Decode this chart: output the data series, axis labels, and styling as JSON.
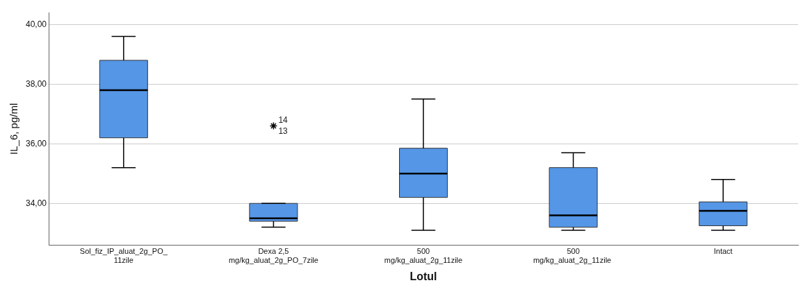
{
  "chart_data": {
    "type": "box",
    "xlabel": "Lotul",
    "ylabel": "IL_6, pg/ml",
    "categories": [
      "Sol_fiz_IP_aluat_2g_PO_\n11zile",
      "Dexa 2,5\nmg/kg_aluat_2g_PO_7zile",
      "500\nmg/kg_aluat_2g_11zile",
      "500\nmg/kg_aluat_2g_11zile ",
      "Intact"
    ],
    "color": "#5596e6",
    "boxes": [
      {
        "low": 35.2,
        "q1": 36.2,
        "median": 37.8,
        "q3": 38.8,
        "high": 39.6
      },
      {
        "low": 33.2,
        "q1": 33.4,
        "median": 33.5,
        "q3": 34.0,
        "high": 34.0,
        "outliers": [
          36.6
        ]
      },
      {
        "low": 33.1,
        "q1": 34.2,
        "median": 35.0,
        "q3": 35.85,
        "high": 37.5
      },
      {
        "low": 33.1,
        "q1": 33.2,
        "median": 33.6,
        "q3": 35.2,
        "high": 35.7
      },
      {
        "low": 33.1,
        "q1": 33.25,
        "median": 33.75,
        "q3": 34.05,
        "high": 34.8
      }
    ],
    "ylim": [
      32.6,
      40.4
    ],
    "yticks": [
      {
        "value": 34,
        "label": "34,00"
      },
      {
        "value": 36,
        "label": "36,00"
      },
      {
        "value": 38,
        "label": "38,00"
      },
      {
        "value": 40,
        "label": "40,00"
      }
    ],
    "grid": "y",
    "legend": false,
    "marker": "star",
    "annotations": [
      "14",
      "13"
    ]
  }
}
